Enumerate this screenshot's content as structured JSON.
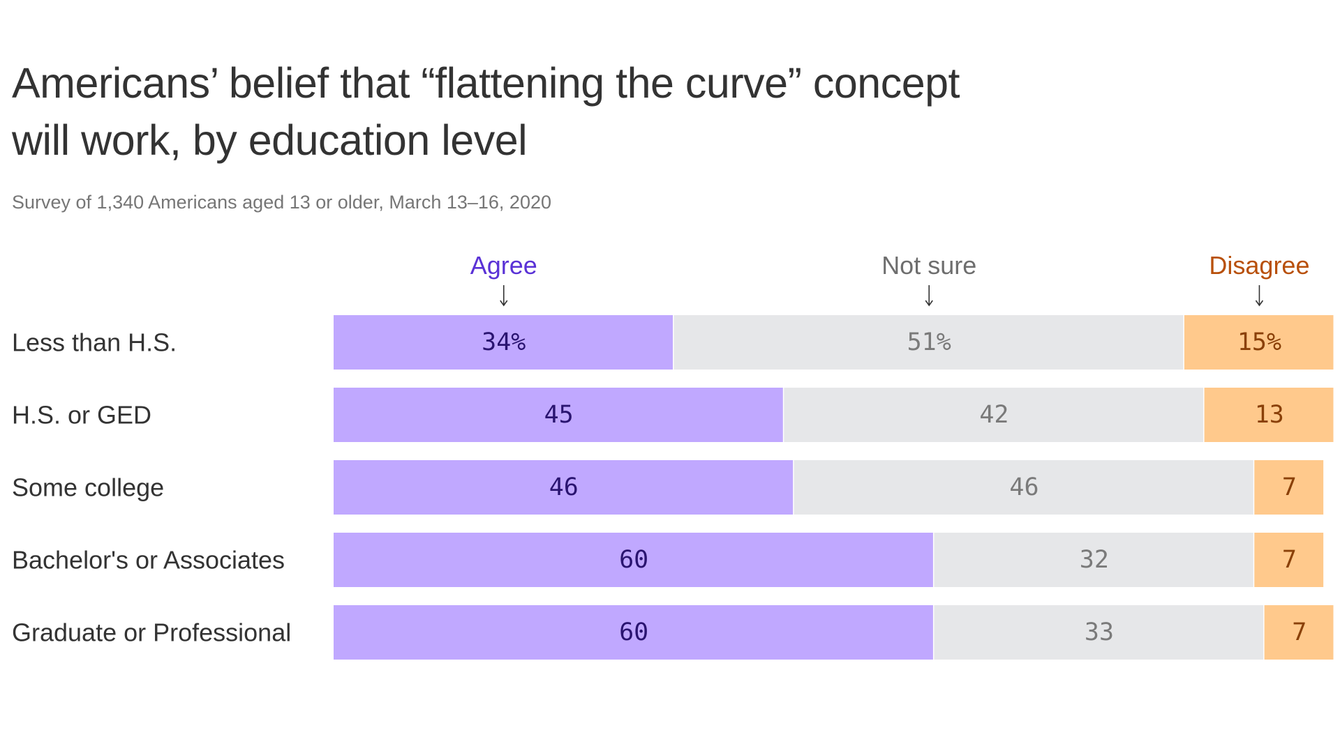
{
  "chart_data": {
    "type": "bar",
    "orientation": "horizontal",
    "stacked": true,
    "title": "Americans’ belief that “flattening the curve” concept will work, by education level",
    "subtitle": "Survey of 1,340 Americans aged 13 or older, March 13–16, 2020",
    "categories": [
      "Less than H.S.",
      "H.S. or GED",
      "Some college",
      "Bachelor's or Associates",
      "Graduate or Professional"
    ],
    "series": [
      {
        "name": "Agree",
        "color": "#c0a8ff",
        "label_color": "#2a1470",
        "legend_color": "#5a32d6",
        "values": [
          34,
          45,
          46,
          60,
          60
        ],
        "labels": [
          "34%",
          "45",
          "46",
          "60",
          "60"
        ]
      },
      {
        "name": "Not sure",
        "color": "#e6e7e9",
        "label_color": "#7a7a7a",
        "legend_color": "#6e6e6e",
        "values": [
          51,
          42,
          46,
          32,
          33
        ],
        "labels": [
          "51%",
          "42",
          "46",
          "32",
          "33"
        ]
      },
      {
        "name": "Disagree",
        "color": "#ffc98c",
        "label_color": "#8a4008",
        "legend_color": "#b8500a",
        "values": [
          15,
          13,
          7,
          7,
          7
        ],
        "labels": [
          "15%",
          "13",
          "7",
          "7",
          "7"
        ]
      }
    ],
    "xlim": [
      0,
      100
    ],
    "grid": false,
    "legend": "top, arrows pointing down to bars"
  }
}
